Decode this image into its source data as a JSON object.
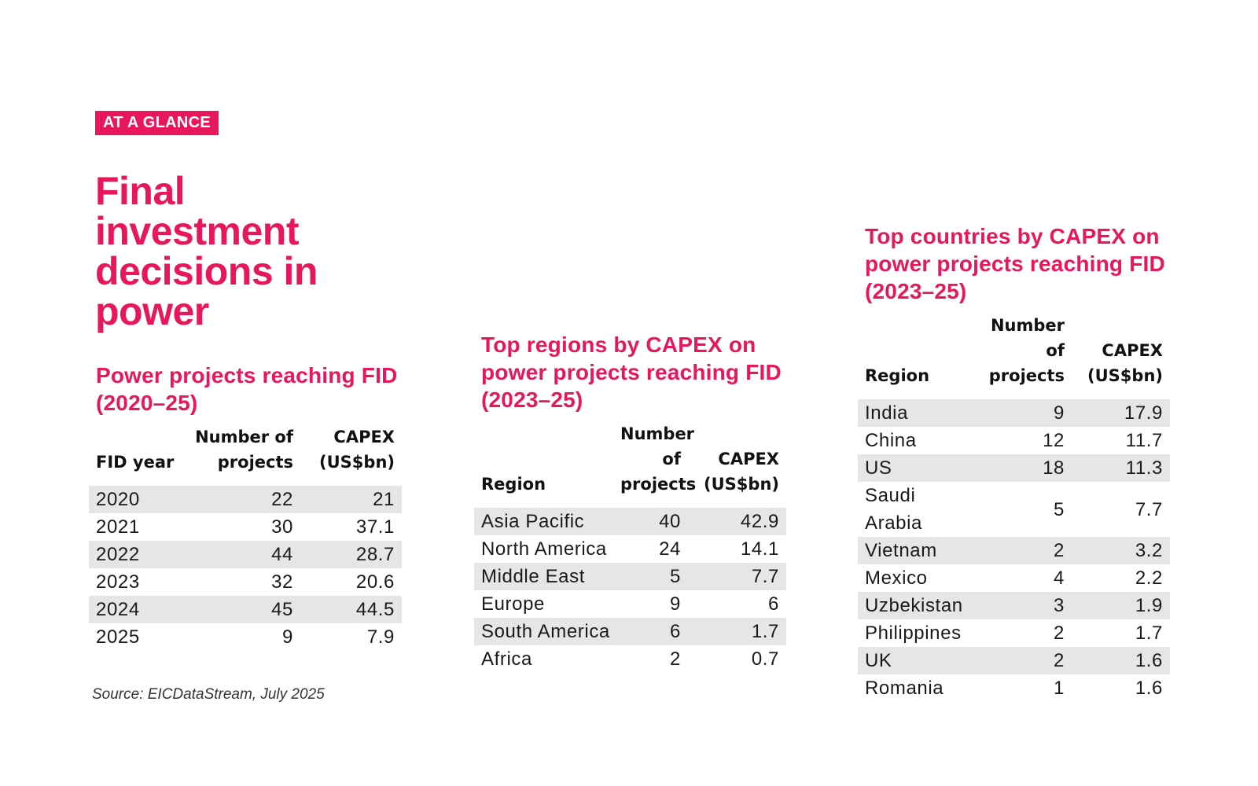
{
  "badge": "AT A GLANCE",
  "title": "Final investment decisions in power",
  "section1": {
    "title": "Power projects reaching FID (2020–25)",
    "headers": [
      "FID year",
      "Number of projects",
      "CAPEX (US$bn)"
    ],
    "rows": [
      [
        "2020",
        "22",
        "21"
      ],
      [
        "2021",
        "30",
        "37.1"
      ],
      [
        "2022",
        "44",
        "28.7"
      ],
      [
        "2023",
        "32",
        "20.6"
      ],
      [
        "2024",
        "45",
        "44.5"
      ],
      [
        "2025",
        "9",
        "7.9"
      ]
    ]
  },
  "section2": {
    "title": "Top regions by CAPEX on power projects reaching FID (2023–25)",
    "headers": [
      "Region",
      "Number of projects",
      "CAPEX (US$bn)"
    ],
    "rows": [
      [
        "Asia Pacific",
        "40",
        "42.9"
      ],
      [
        "North America",
        "24",
        "14.1"
      ],
      [
        "Middle East",
        "5",
        "7.7"
      ],
      [
        "Europe",
        "9",
        "6"
      ],
      [
        "South America",
        "6",
        "1.7"
      ],
      [
        "Africa",
        "2",
        "0.7"
      ]
    ]
  },
  "section3": {
    "title": "Top countries by CAPEX on power projects reaching FID (2023–25)",
    "headers": [
      "Region",
      "Number of projects",
      "CAPEX (US$bn)"
    ],
    "rows": [
      [
        "India",
        "9",
        "17.9"
      ],
      [
        "China",
        "12",
        "11.7"
      ],
      [
        "US",
        "18",
        "11.3"
      ],
      [
        "Saudi Arabia",
        "5",
        "7.7"
      ],
      [
        "Vietnam",
        "2",
        "3.2"
      ],
      [
        "Mexico",
        "4",
        "2.2"
      ],
      [
        "Uzbekistan",
        "3",
        "1.9"
      ],
      [
        "Philippines",
        "2",
        "1.7"
      ],
      [
        "UK",
        "2",
        "1.6"
      ],
      [
        "Romania",
        "1",
        "1.6"
      ]
    ]
  },
  "source": "Source: EICDataStream, July 2025",
  "colors": {
    "accent": "#e8165b",
    "row_stripe": "#e6e6e6"
  }
}
